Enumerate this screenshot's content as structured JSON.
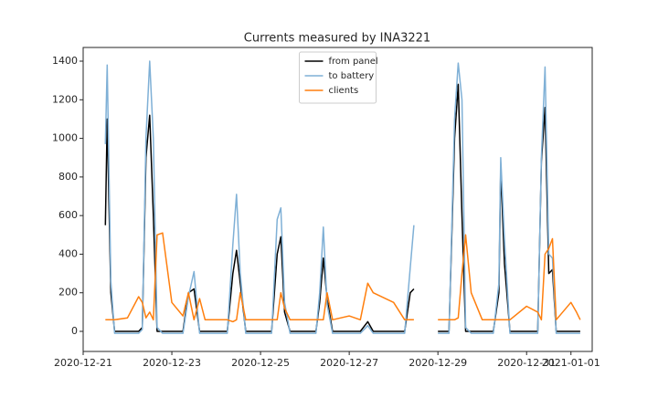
{
  "chart_data": {
    "type": "line",
    "title": "Currents measured by INA3221",
    "x": [
      "2020-12-21T12:00",
      "2020-12-21T13:00",
      "2020-12-21T15:00",
      "2020-12-21T17:00",
      "2020-12-22T00:00",
      "2020-12-22T06:00",
      "2020-12-22T08:00",
      "2020-12-22T10:00",
      "2020-12-22T12:00",
      "2020-12-22T14:00",
      "2020-12-22T16:00",
      "2020-12-22T19:00",
      "2020-12-23T00:00",
      "2020-12-23T06:00",
      "2020-12-23T09:00",
      "2020-12-23T12:00",
      "2020-12-23T15:00",
      "2020-12-23T18:00",
      "2020-12-24T00:00",
      "2020-12-24T06:00",
      "2020-12-24T09:00",
      "2020-12-24T11:00",
      "2020-12-24T13:00",
      "2020-12-24T16:00",
      "2020-12-25T00:00",
      "2020-12-25T06:00",
      "2020-12-25T09:00",
      "2020-12-25T11:00",
      "2020-12-25T13:00",
      "2020-12-25T16:00",
      "2020-12-26T00:00",
      "2020-12-26T06:00",
      "2020-12-26T08:00",
      "2020-12-26T10:00",
      "2020-12-26T12:00",
      "2020-12-26T15:00",
      "2020-12-27T00:00",
      "2020-12-27T06:00",
      "2020-12-27T10:00",
      "2020-12-27T13:00",
      "2020-12-28T00:00",
      "2020-12-28T06:00",
      "2020-12-28T09:00",
      "2020-12-28T11:00",
      "2020-12-28T14:00",
      "2020-12-29T00:00",
      "2020-12-29T06:00",
      "2020-12-29T09:00",
      "2020-12-29T11:00",
      "2020-12-29T13:00",
      "2020-12-29T15:00",
      "2020-12-29T18:00",
      "2020-12-30T00:00",
      "2020-12-30T06:00",
      "2020-12-30T09:00",
      "2020-12-30T10:00",
      "2020-12-30T12:00",
      "2020-12-30T15:00",
      "2020-12-31T00:00",
      "2020-12-31T06:00",
      "2020-12-31T08:00",
      "2020-12-31T10:00",
      "2020-12-31T12:00",
      "2020-12-31T14:00",
      "2020-12-31T16:00",
      "2021-01-01T00:00",
      "2021-01-01T03:00",
      "2021-01-01T05:00"
    ],
    "series": [
      {
        "name": "from panel",
        "color": "#000000",
        "values": [
          550,
          1100,
          200,
          0,
          0,
          0,
          20,
          900,
          1120,
          600,
          0,
          0,
          0,
          0,
          200,
          220,
          0,
          0,
          0,
          0,
          300,
          420,
          250,
          0,
          0,
          0,
          400,
          490,
          100,
          0,
          0,
          0,
          150,
          380,
          170,
          0,
          0,
          0,
          50,
          0,
          0,
          0,
          200,
          220,
          null,
          0,
          0,
          1000,
          1280,
          600,
          0,
          0,
          0,
          0,
          200,
          850,
          350,
          0,
          0,
          0,
          880,
          1160,
          300,
          320,
          0,
          0,
          0,
          0
        ]
      },
      {
        "name": "to battery",
        "color": "#7fb0d6",
        "values": [
          970,
          1380,
          260,
          -10,
          -10,
          -10,
          10,
          1000,
          1400,
          1000,
          20,
          -10,
          -10,
          -10,
          180,
          310,
          -10,
          -10,
          -10,
          -10,
          450,
          710,
          300,
          -10,
          -10,
          -10,
          580,
          640,
          150,
          -10,
          -10,
          -10,
          200,
          540,
          140,
          -10,
          -10,
          -10,
          30,
          -10,
          -10,
          -10,
          330,
          550,
          null,
          -10,
          -10,
          1100,
          1390,
          1200,
          20,
          -10,
          -10,
          -10,
          250,
          900,
          480,
          -10,
          -10,
          -10,
          900,
          1370,
          400,
          380,
          -10,
          -10,
          -10,
          -10
        ]
      },
      {
        "name": "clients",
        "color": "#ff7f0e",
        "values": [
          60,
          60,
          60,
          60,
          70,
          180,
          150,
          70,
          100,
          60,
          500,
          510,
          150,
          80,
          200,
          60,
          170,
          60,
          60,
          60,
          50,
          60,
          200,
          60,
          60,
          60,
          60,
          200,
          120,
          60,
          60,
          60,
          60,
          60,
          200,
          60,
          80,
          60,
          250,
          200,
          150,
          60,
          60,
          60,
          null,
          60,
          60,
          60,
          70,
          300,
          500,
          200,
          60,
          60,
          60,
          60,
          60,
          60,
          130,
          100,
          60,
          400,
          430,
          480,
          60,
          150,
          100,
          60
        ]
      }
    ],
    "xlim": [
      "2020-12-21T00:00",
      "2021-01-01T11:30"
    ],
    "xticks": [
      "2020-12-21",
      "2020-12-23",
      "2020-12-25",
      "2020-12-27",
      "2020-12-29",
      "2020-12-31",
      "2021-01-01"
    ],
    "ylim": [
      -104,
      1471
    ],
    "yticks": [
      0,
      200,
      400,
      600,
      800,
      1000,
      1200,
      1400
    ],
    "legend": "upper center"
  }
}
